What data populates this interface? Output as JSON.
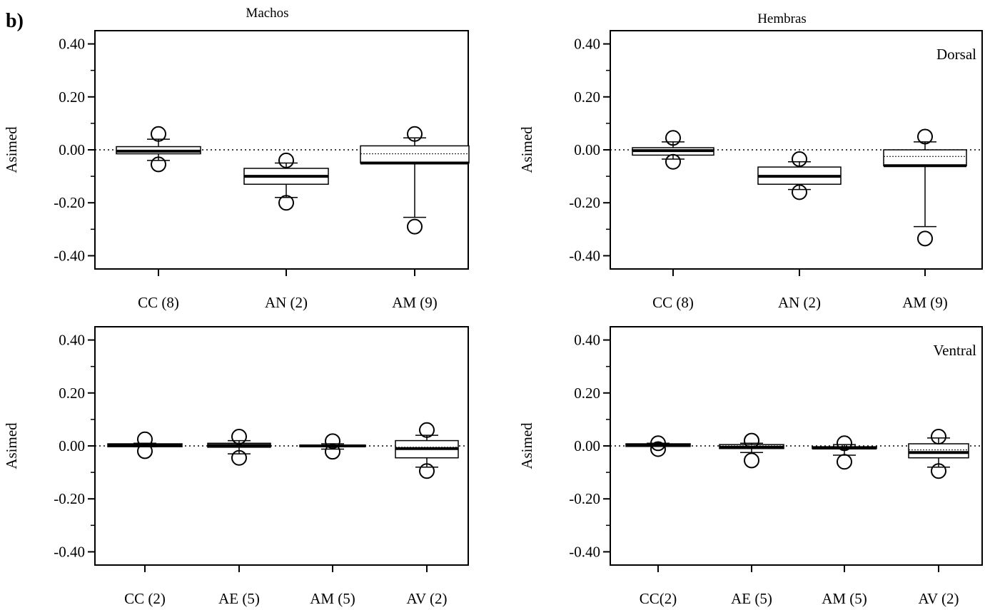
{
  "figure": {
    "letter": "b)",
    "columns": [
      "Machos",
      "Hembras"
    ],
    "rows": [
      "Dorsal",
      "Ventral"
    ]
  },
  "chart_data": [
    {
      "type": "box",
      "column": "Machos",
      "row": "Dorsal",
      "title": "Machos",
      "panel_label": "",
      "ylabel": "Asimed",
      "ylim": [
        -0.45,
        0.45
      ],
      "yticks": [
        "0.40",
        "0.20",
        "0.00",
        "-0.20",
        "-0.40"
      ],
      "reference_line": 0,
      "categories": [
        "CC (8)",
        "AN (2)",
        "AM (9)"
      ],
      "boxes": [
        {
          "q1": -0.015,
          "median": -0.005,
          "mean": -0.002,
          "q3": 0.012,
          "whisker_low": -0.04,
          "whisker_high": 0.04,
          "outliers": [
            0.06,
            -0.055
          ]
        },
        {
          "q1": -0.13,
          "median": -0.1,
          "mean": -0.1,
          "q3": -0.07,
          "whisker_low": -0.18,
          "whisker_high": -0.05,
          "outliers": [
            -0.04,
            -0.2
          ]
        },
        {
          "q1": -0.05,
          "median": -0.05,
          "mean": -0.015,
          "q3": 0.015,
          "whisker_low": -0.255,
          "whisker_high": 0.045,
          "outliers": [
            0.06,
            -0.29
          ]
        }
      ]
    },
    {
      "type": "box",
      "column": "Hembras",
      "row": "Dorsal",
      "title": "Hembras",
      "panel_label": "Dorsal",
      "ylabel": "Asimed",
      "ylim": [
        -0.45,
        0.45
      ],
      "yticks": [
        "0.40",
        "0.20",
        "0.00",
        "-0.20",
        "-0.40"
      ],
      "reference_line": 0,
      "categories": [
        "CC (8)",
        "AN (2)",
        "AM (9)"
      ],
      "boxes": [
        {
          "q1": -0.02,
          "median": -0.003,
          "mean": 0.0,
          "q3": 0.008,
          "whisker_low": -0.035,
          "whisker_high": 0.03,
          "outliers": [
            0.045,
            -0.045
          ]
        },
        {
          "q1": -0.13,
          "median": -0.1,
          "mean": -0.1,
          "q3": -0.065,
          "whisker_low": -0.15,
          "whisker_high": -0.045,
          "outliers": [
            -0.035,
            -0.16
          ]
        },
        {
          "q1": -0.06,
          "median": -0.06,
          "mean": -0.025,
          "q3": 0.0,
          "whisker_low": -0.29,
          "whisker_high": 0.03,
          "outliers": [
            0.05,
            -0.335
          ]
        }
      ]
    },
    {
      "type": "box",
      "column": "Machos",
      "row": "Ventral",
      "title": "",
      "panel_label": "",
      "ylabel": "Asimed",
      "ylim": [
        -0.45,
        0.45
      ],
      "yticks": [
        "0.40",
        "0.20",
        "0.00",
        "-0.20",
        "-0.40"
      ],
      "reference_line": 0,
      "categories": [
        "CC (2)",
        "AE (5)",
        "AM (5)",
        "AV (2)"
      ],
      "boxes": [
        {
          "q1": -0.003,
          "median": 0.003,
          "mean": 0.004,
          "q3": 0.008,
          "whisker_low": -0.003,
          "whisker_high": 0.01,
          "outliers": [
            0.025,
            -0.02
          ]
        },
        {
          "q1": -0.005,
          "median": 0.002,
          "mean": 0.004,
          "q3": 0.01,
          "whisker_low": -0.03,
          "whisker_high": 0.02,
          "outliers": [
            0.035,
            -0.045
          ]
        },
        {
          "q1": -0.003,
          "median": 0.0,
          "mean": 0.0,
          "q3": 0.003,
          "whisker_low": -0.012,
          "whisker_high": 0.008,
          "outliers": [
            0.018,
            -0.022
          ]
        },
        {
          "q1": -0.045,
          "median": -0.01,
          "mean": -0.005,
          "q3": 0.02,
          "whisker_low": -0.08,
          "whisker_high": 0.04,
          "outliers": [
            0.06,
            -0.095
          ]
        }
      ]
    },
    {
      "type": "box",
      "column": "Hembras",
      "row": "Ventral",
      "title": "",
      "panel_label": "Ventral",
      "ylabel": "Asimed",
      "ylim": [
        -0.45,
        0.45
      ],
      "yticks": [
        "0.40",
        "0.20",
        "0.00",
        "-0.20",
        "-0.40"
      ],
      "reference_line": 0,
      "categories": [
        "CC(2)",
        "AE (5)",
        "AM (5)",
        "AV (2)"
      ],
      "boxes": [
        {
          "q1": -0.002,
          "median": 0.003,
          "mean": 0.004,
          "q3": 0.008,
          "whisker_low": -0.002,
          "whisker_high": 0.01,
          "outliers": [
            0.01,
            -0.012
          ]
        },
        {
          "q1": -0.01,
          "median": -0.005,
          "mean": 0.0,
          "q3": 0.005,
          "whisker_low": -0.025,
          "whisker_high": 0.01,
          "outliers": [
            0.02,
            -0.055
          ]
        },
        {
          "q1": -0.01,
          "median": -0.008,
          "mean": -0.005,
          "q3": -0.003,
          "whisker_low": -0.035,
          "whisker_high": 0.005,
          "outliers": [
            0.01,
            -0.06
          ]
        },
        {
          "q1": -0.045,
          "median": -0.025,
          "mean": -0.015,
          "q3": 0.008,
          "whisker_low": -0.08,
          "whisker_high": 0.03,
          "outliers": [
            0.035,
            -0.095
          ]
        }
      ]
    }
  ]
}
